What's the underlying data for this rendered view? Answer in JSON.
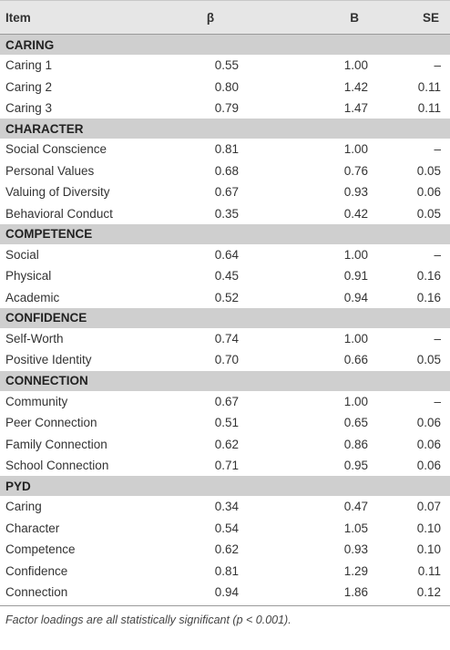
{
  "table": {
    "headers": {
      "item": "Item",
      "beta": "β",
      "B": "B",
      "SE": "SE"
    },
    "sections": [
      {
        "title": "CARING",
        "rows": [
          {
            "item": "Caring 1",
            "beta": "0.55",
            "B": "1.00",
            "SE": "–"
          },
          {
            "item": "Caring 2",
            "beta": "0.80",
            "B": "1.42",
            "SE": "0.11"
          },
          {
            "item": "Caring 3",
            "beta": "0.79",
            "B": "1.47",
            "SE": "0.11"
          }
        ]
      },
      {
        "title": "CHARACTER",
        "rows": [
          {
            "item": "Social Conscience",
            "beta": "0.81",
            "B": "1.00",
            "SE": "–"
          },
          {
            "item": "Personal Values",
            "beta": "0.68",
            "B": "0.76",
            "SE": "0.05"
          },
          {
            "item": "Valuing of Diversity",
            "beta": "0.67",
            "B": "0.93",
            "SE": "0.06"
          },
          {
            "item": "Behavioral Conduct",
            "beta": "0.35",
            "B": "0.42",
            "SE": "0.05"
          }
        ]
      },
      {
        "title": "COMPETENCE",
        "rows": [
          {
            "item": "Social",
            "beta": "0.64",
            "B": "1.00",
            "SE": "–"
          },
          {
            "item": "Physical",
            "beta": "0.45",
            "B": "0.91",
            "SE": "0.16"
          },
          {
            "item": "Academic",
            "beta": "0.52",
            "B": "0.94",
            "SE": "0.16"
          }
        ]
      },
      {
        "title": "CONFIDENCE",
        "rows": [
          {
            "item": "Self-Worth",
            "beta": "0.74",
            "B": "1.00",
            "SE": "–"
          },
          {
            "item": "Positive Identity",
            "beta": "0.70",
            "B": "0.66",
            "SE": "0.05"
          }
        ]
      },
      {
        "title": "CONNECTION",
        "rows": [
          {
            "item": "Community",
            "beta": "0.67",
            "B": "1.00",
            "SE": "–"
          },
          {
            "item": "Peer Connection",
            "beta": "0.51",
            "B": "0.65",
            "SE": "0.06"
          },
          {
            "item": "Family Connection",
            "beta": "0.62",
            "B": "0.86",
            "SE": "0.06"
          },
          {
            "item": "School Connection",
            "beta": "0.71",
            "B": "0.95",
            "SE": "0.06"
          }
        ]
      },
      {
        "title": "PYD",
        "rows": [
          {
            "item": "Caring",
            "beta": "0.34",
            "B": "0.47",
            "SE": "0.07"
          },
          {
            "item": "Character",
            "beta": "0.54",
            "B": "1.05",
            "SE": "0.10"
          },
          {
            "item": "Competence",
            "beta": "0.62",
            "B": "0.93",
            "SE": "0.10"
          },
          {
            "item": "Confidence",
            "beta": "0.81",
            "B": "1.29",
            "SE": "0.11"
          },
          {
            "item": "Connection",
            "beta": "0.94",
            "B": "1.86",
            "SE": "0.12"
          }
        ]
      }
    ],
    "footnote": "Factor loadings are all statistically significant (p < 0.001)."
  }
}
